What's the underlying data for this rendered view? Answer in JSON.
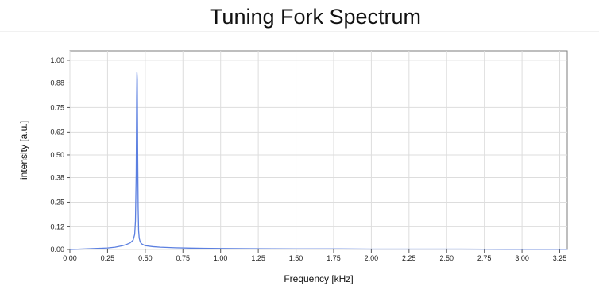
{
  "chart_data": {
    "type": "line",
    "title": "Tuning Fork Spectrum",
    "xlabel": "Frequency [kHz]",
    "ylabel": "intensity [a.u.]",
    "xlim": [
      0,
      3.3
    ],
    "ylim": [
      0,
      1.05
    ],
    "x_ticks": [
      "0.00",
      "0.25",
      "0.50",
      "0.75",
      "1.00",
      "1.25",
      "1.50",
      "1.75",
      "2.00",
      "2.25",
      "2.50",
      "2.75",
      "3.00",
      "3.25"
    ],
    "y_ticks": [
      "0.00",
      "0.12",
      "0.25",
      "0.38",
      "0.50",
      "0.62",
      "0.75",
      "0.88",
      "1.00"
    ],
    "grid": true,
    "series_color": "#5b7fe0",
    "series": [
      {
        "x": [
          0.0,
          0.1,
          0.2,
          0.25,
          0.3,
          0.35,
          0.38,
          0.4,
          0.42,
          0.43,
          0.435,
          0.44,
          0.443,
          0.445,
          0.447,
          0.45,
          0.453,
          0.456,
          0.46,
          0.465,
          0.47,
          0.48,
          0.5,
          0.55,
          0.6,
          0.7,
          0.8,
          1.0,
          1.2,
          1.5,
          1.8,
          2.0,
          2.3,
          2.6,
          2.9,
          3.1,
          3.3
        ],
        "y": [
          0.0,
          0.003,
          0.006,
          0.008,
          0.012,
          0.02,
          0.028,
          0.035,
          0.05,
          0.08,
          0.15,
          0.4,
          0.8,
          0.935,
          0.9,
          0.5,
          0.22,
          0.1,
          0.06,
          0.045,
          0.035,
          0.028,
          0.02,
          0.015,
          0.012,
          0.009,
          0.007,
          0.005,
          0.004,
          0.003,
          0.003,
          0.002,
          0.002,
          0.002,
          0.001,
          0.001,
          0.001
        ]
      }
    ]
  }
}
